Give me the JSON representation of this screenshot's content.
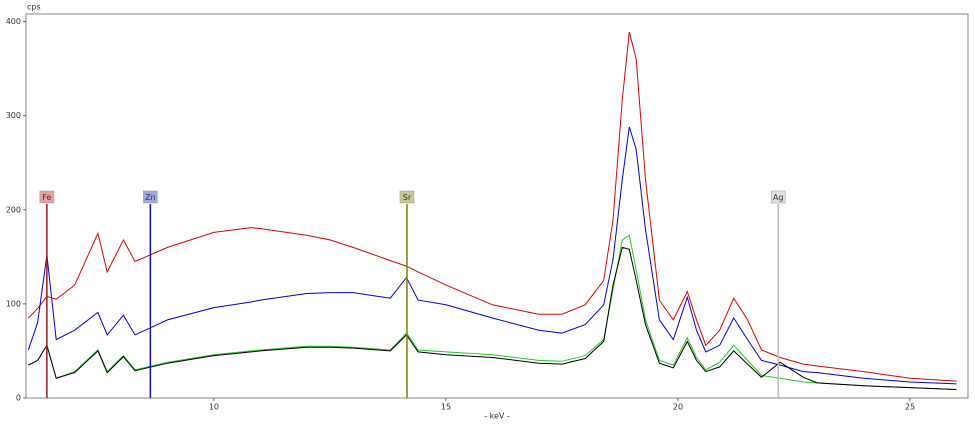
{
  "chart_data": {
    "type": "line",
    "ylabel": "cps",
    "xlabel": "- keV -",
    "x": [
      6.0,
      6.2,
      6.4,
      6.6,
      7.0,
      7.5,
      7.7,
      8.05,
      8.3,
      9,
      10,
      10.8,
      11,
      12,
      12.5,
      13,
      13.8,
      14.15,
      14.4,
      15,
      16,
      17,
      17.5,
      18,
      18.4,
      18.6,
      18.8,
      18.95,
      19.1,
      19.3,
      19.6,
      19.9,
      20.2,
      20.4,
      20.6,
      20.9,
      21.2,
      21.5,
      21.8,
      22.2,
      22.7,
      23,
      24,
      25,
      26
    ],
    "series": [
      {
        "color": "#e00000",
        "values": [
          85,
          95,
          108,
          105,
          120,
          175,
          134,
          168,
          145,
          160,
          176,
          181,
          180,
          173,
          168,
          160,
          146,
          140,
          134,
          120,
          99,
          89,
          89,
          99,
          125,
          189,
          317,
          389,
          360,
          232,
          104,
          83,
          113,
          83,
          56,
          72,
          106,
          83,
          51,
          43,
          36,
          34,
          28,
          21,
          18
        ]
      },
      {
        "color": "#0000e0",
        "values": [
          51,
          80,
          152,
          62,
          72,
          91,
          67,
          88,
          67,
          83,
          96,
          102,
          104,
          111,
          112,
          112,
          106,
          128,
          104,
          99,
          85,
          72,
          69,
          78,
          99,
          147,
          232,
          288,
          264,
          179,
          83,
          62,
          107,
          72,
          49,
          56,
          85,
          62,
          40,
          35,
          28,
          27,
          21,
          17,
          15
        ]
      },
      {
        "color": "#22cc22",
        "values": [
          35,
          40,
          56,
          21,
          28,
          51,
          28,
          45,
          30,
          38,
          46,
          50,
          51,
          55,
          55,
          54,
          51,
          69,
          51,
          49,
          46,
          40,
          39,
          45,
          62,
          115,
          168,
          173,
          136,
          83,
          40,
          35,
          64,
          43,
          30,
          38,
          56,
          40,
          24,
          21,
          17,
          16,
          13,
          11,
          9
        ]
      },
      {
        "color": "#000000",
        "values": [
          35,
          40,
          56,
          21,
          27,
          50,
          27,
          44,
          29,
          37,
          45,
          49,
          50,
          54,
          54,
          53,
          50,
          67,
          49,
          46,
          43,
          37,
          36,
          42,
          60,
          120,
          160,
          158,
          125,
          78,
          37,
          32,
          60,
          40,
          28,
          33,
          50,
          36,
          22,
          38,
          22,
          16,
          13,
          11,
          9
        ]
      }
    ],
    "markers": [
      {
        "label": "Fe",
        "energy": 6.4,
        "color": "#a01818",
        "box": "#e8a0a0"
      },
      {
        "label": "Zn",
        "energy": 8.63,
        "color": "#1010c0",
        "box": "#a0a8e0"
      },
      {
        "label": "Sr",
        "energy": 14.16,
        "color": "#808000",
        "box": "#c8c890"
      },
      {
        "label": "Ag",
        "energy": 22.16,
        "color": "#c0c0c0",
        "box": "#e0e0e0"
      }
    ],
    "xlim": [
      5.95,
      26.25
    ],
    "ylim": [
      0,
      408
    ],
    "xticks": [
      10,
      15,
      20,
      25
    ],
    "yticks": [
      0,
      100,
      200,
      300,
      400
    ]
  }
}
